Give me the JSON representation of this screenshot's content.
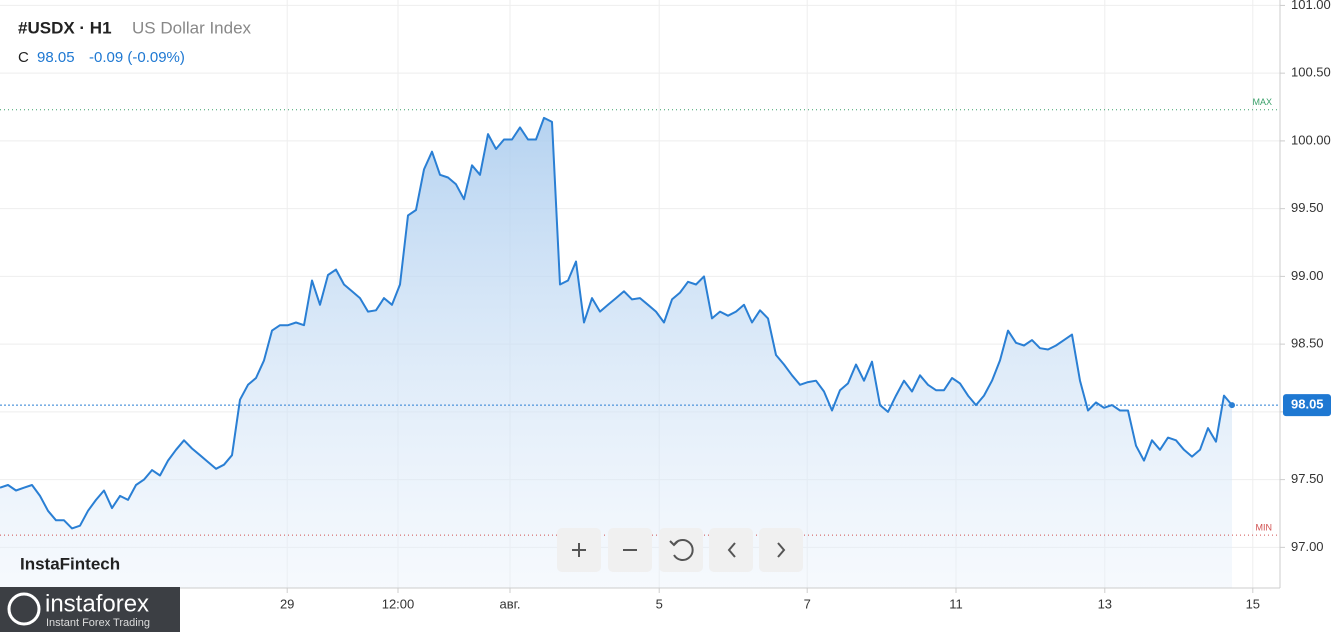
{
  "chart_data": {
    "type": "area",
    "header": {
      "symbol": "#USDX · H1",
      "name": "US Dollar Index",
      "close_label": "C",
      "close": "98.05",
      "change": "-0.09 (-0.09%)"
    },
    "watermark": "InstaFintech",
    "logo": {
      "name": "instaforex",
      "tagline": "Instant Forex Trading"
    },
    "color": "#2a7fd4",
    "grid": true,
    "xlim": [
      0,
      160
    ],
    "ylim": [
      96.7,
      101.04
    ],
    "xticks": [
      {
        "value": 35.9,
        "label": "29"
      },
      {
        "value": 49.75,
        "label": "12:00"
      },
      {
        "value": 63.75,
        "label": "авг."
      },
      {
        "value": 82.4,
        "label": "5"
      },
      {
        "value": 100.9,
        "label": "7"
      },
      {
        "value": 119.5,
        "label": "11"
      },
      {
        "value": 138.1,
        "label": "13"
      },
      {
        "value": 156.6,
        "label": "15"
      }
    ],
    "yticks": [
      {
        "value": 97,
        "label": "97.00"
      },
      {
        "value": 97.5,
        "label": "97.50"
      },
      {
        "value": 98,
        "label": "98.00"
      },
      {
        "value": 98.5,
        "label": "98.50"
      },
      {
        "value": 99,
        "label": "99.00"
      },
      {
        "value": 99.5,
        "label": "99.50"
      },
      {
        "value": 100,
        "label": "100.00"
      },
      {
        "value": 100.5,
        "label": "100.50"
      },
      {
        "value": 101,
        "label": "101.00"
      }
    ],
    "max": {
      "value": 100.23,
      "label": "MAX"
    },
    "min": {
      "value": 97.09,
      "label": "MIN"
    },
    "last_price": {
      "value": 98.05,
      "label": "98.05"
    },
    "values": [
      97.44,
      97.46,
      97.42,
      97.44,
      97.46,
      97.38,
      97.27,
      97.2,
      97.2,
      97.14,
      97.16,
      97.27,
      97.35,
      97.42,
      97.29,
      97.38,
      97.35,
      97.46,
      97.5,
      97.57,
      97.53,
      97.64,
      97.72,
      97.79,
      97.73,
      97.68,
      97.63,
      97.58,
      97.61,
      97.68,
      98.09,
      98.2,
      98.25,
      98.38,
      98.6,
      98.64,
      98.64,
      98.66,
      98.64,
      98.97,
      98.79,
      99.01,
      99.05,
      98.94,
      98.89,
      98.84,
      98.74,
      98.75,
      98.84,
      98.79,
      98.94,
      99.45,
      99.49,
      99.79,
      99.92,
      99.75,
      99.73,
      99.68,
      99.57,
      99.82,
      99.75,
      100.05,
      99.94,
      100.01,
      100.01,
      100.1,
      100.01,
      100.01,
      100.17,
      100.14,
      98.94,
      98.97,
      99.11,
      98.66,
      98.84,
      98.74,
      98.79,
      98.84,
      98.89,
      98.83,
      98.84,
      98.79,
      98.74,
      98.66,
      98.83,
      98.88,
      98.96,
      98.94,
      99.0,
      98.69,
      98.74,
      98.71,
      98.74,
      98.79,
      98.66,
      98.75,
      98.69,
      98.42,
      98.35,
      98.27,
      98.2,
      98.22,
      98.23,
      98.15,
      98.01,
      98.16,
      98.21,
      98.35,
      98.23,
      98.37,
      98.05,
      98.0,
      98.12,
      98.23,
      98.15,
      98.27,
      98.2,
      98.16,
      98.16,
      98.25,
      98.21,
      98.12,
      98.05,
      98.12,
      98.23,
      98.38,
      98.6,
      98.51,
      98.49,
      98.53,
      98.47,
      98.46,
      98.49,
      98.53,
      98.57,
      98.23,
      98.01,
      98.07,
      98.03,
      98.05,
      98.01,
      98.01,
      97.75,
      97.64,
      97.79,
      97.72,
      97.81,
      97.79,
      97.72,
      97.67,
      97.72,
      97.88,
      97.78,
      98.12,
      98.05
    ]
  }
}
